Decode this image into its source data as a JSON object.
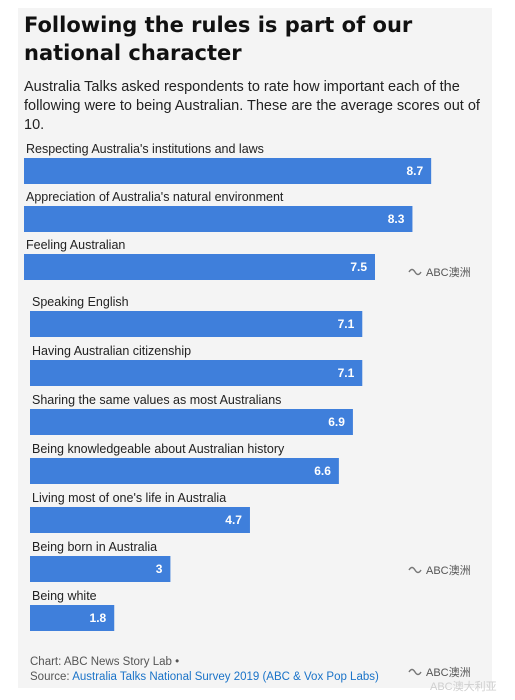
{
  "header": {
    "title": "Following the rules is part of our national character",
    "subtitle": "Australia Talks asked respondents to rate how important each of the following were to being Australian. These are the average scores out of 10."
  },
  "chart_data": {
    "type": "bar",
    "orientation": "horizontal",
    "categories": [
      "Respecting Australia's institutions and laws",
      "Appreciation of Australia's natural environment",
      "Feeling Australian",
      "Speaking English",
      "Having Australian citizenship",
      "Sharing the same values as most Australians",
      "Being knowledgeable about Australian history",
      "Living most of one's life in Australia",
      "Being born in Australia",
      "Being white"
    ],
    "values": [
      8.7,
      8.3,
      7.5,
      7.1,
      7.1,
      6.9,
      6.6,
      4.7,
      3,
      1.8
    ],
    "value_labels": [
      "8.7",
      "8.3",
      "7.5",
      "7.1",
      "7.1",
      "6.9",
      "6.6",
      "4.7",
      "3",
      "1.8"
    ],
    "xlim": [
      0,
      10
    ],
    "bar_color": "#3f7fdb",
    "grid": false,
    "legend": false
  },
  "footer": {
    "chart_credit": "Chart: ABC News Story Lab •",
    "source_prefix": "Source:",
    "source_link": "Australia Talks National Survey 2019 (ABC & Vox Pop Labs)"
  },
  "watermarks": {
    "abc": "ABC澳洲",
    "faint": "ABC澳大利亚"
  },
  "colors": {
    "background": "#f4f4f4",
    "bar": "#3f7fdb",
    "link": "#1a73c8"
  }
}
